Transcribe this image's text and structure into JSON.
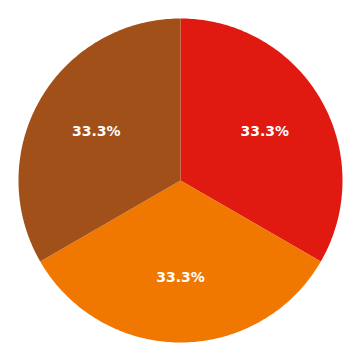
{
  "chart_data": {
    "type": "pie",
    "values": [
      33.3,
      33.3,
      33.3
    ],
    "value_labels": [
      "33.3%",
      "33.3%",
      "33.3%"
    ],
    "colors": [
      "#e01a10",
      "#f07800",
      "#a05018"
    ],
    "data_labels": true
  }
}
